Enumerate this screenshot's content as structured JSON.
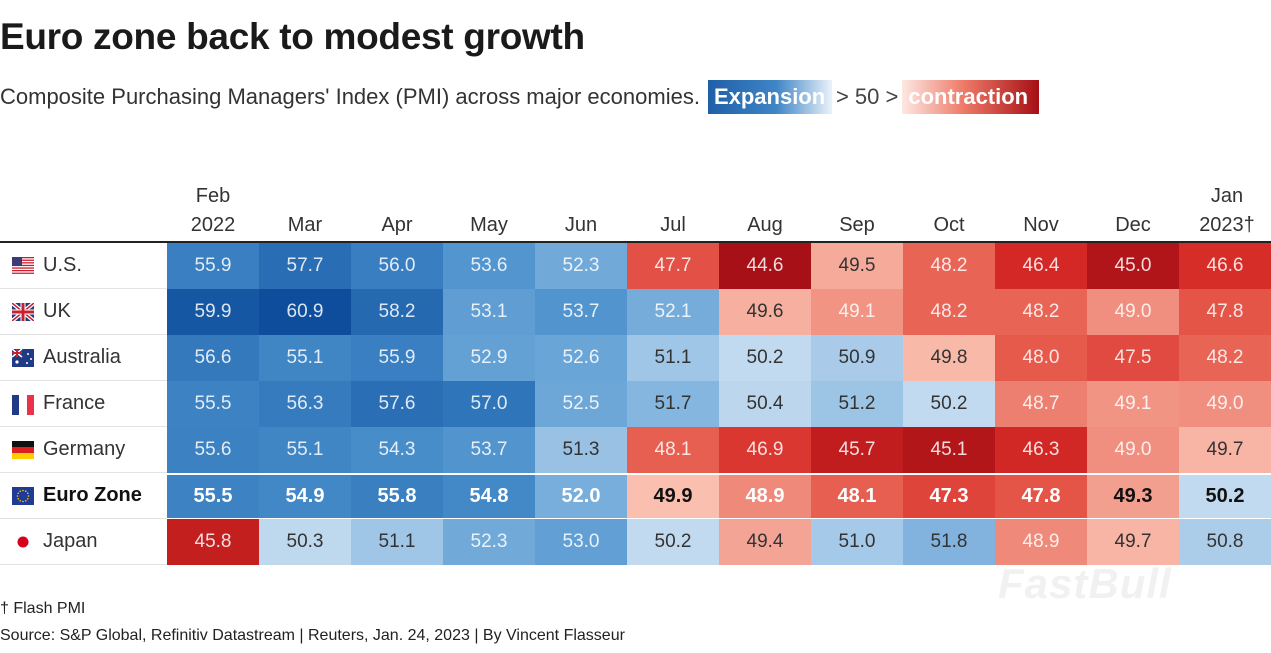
{
  "title": "Euro zone back to modest growth",
  "subtitle": {
    "text": "Composite Purchasing Managers' Index (PMI) across major economies.",
    "legend_expansion": "Expansion",
    "legend_mid": "> 50 >",
    "legend_contraction": "contraction"
  },
  "chart_data": {
    "type": "heatmap",
    "columns": [
      [
        "Feb",
        "2022"
      ],
      [
        "",
        "Mar"
      ],
      [
        "",
        "Apr"
      ],
      [
        "",
        "May"
      ],
      [
        "",
        "Jun"
      ],
      [
        "",
        "Jul"
      ],
      [
        "",
        "Aug"
      ],
      [
        "",
        "Sep"
      ],
      [
        "",
        "Oct"
      ],
      [
        "",
        "Nov"
      ],
      [
        "",
        "Dec"
      ],
      [
        "Jan",
        "2023†"
      ]
    ],
    "rows": [
      {
        "label": "U.S.",
        "flag": "us-flag-icon",
        "values": [
          55.9,
          57.7,
          56.0,
          53.6,
          52.3,
          47.7,
          44.6,
          49.5,
          48.2,
          46.4,
          45.0,
          46.6
        ]
      },
      {
        "label": "UK",
        "flag": "uk-flag-icon",
        "values": [
          59.9,
          60.9,
          58.2,
          53.1,
          53.7,
          52.1,
          49.6,
          49.1,
          48.2,
          48.2,
          49.0,
          47.8
        ]
      },
      {
        "label": "Australia",
        "flag": "australia-flag-icon",
        "values": [
          56.6,
          55.1,
          55.9,
          52.9,
          52.6,
          51.1,
          50.2,
          50.9,
          49.8,
          48.0,
          47.5,
          48.2
        ]
      },
      {
        "label": "France",
        "flag": "france-flag-icon",
        "values": [
          55.5,
          56.3,
          57.6,
          57.0,
          52.5,
          51.7,
          50.4,
          51.2,
          50.2,
          48.7,
          49.1,
          49.0
        ]
      },
      {
        "label": "Germany",
        "flag": "germany-flag-icon",
        "values": [
          55.6,
          55.1,
          54.3,
          53.7,
          51.3,
          48.1,
          46.9,
          45.7,
          45.1,
          46.3,
          49.0,
          49.7
        ]
      },
      {
        "label": "Euro Zone",
        "flag": "eu-flag-icon",
        "bold": true,
        "values": [
          55.5,
          54.9,
          55.8,
          54.8,
          52.0,
          49.9,
          48.9,
          48.1,
          47.3,
          47.8,
          49.3,
          50.2
        ]
      },
      {
        "label": "Japan",
        "flag": "japan-flag-icon",
        "values": [
          45.8,
          50.3,
          51.1,
          52.3,
          53.0,
          50.2,
          49.4,
          51.0,
          51.8,
          48.9,
          49.7,
          50.8
        ]
      }
    ],
    "threshold": 50,
    "color_scale": {
      "expansion": "#0d4c9a",
      "neutral_high": "#c9def1",
      "neutral_low": "#fbc4b4",
      "contraction": "#a50f15"
    }
  },
  "footer": {
    "note": "† Flash PMI",
    "source": "Source: S&P Global, Refinitiv Datastream | Reuters, Jan. 24, 2023 | By Vincent Flasseur"
  },
  "watermark": "FastBull"
}
